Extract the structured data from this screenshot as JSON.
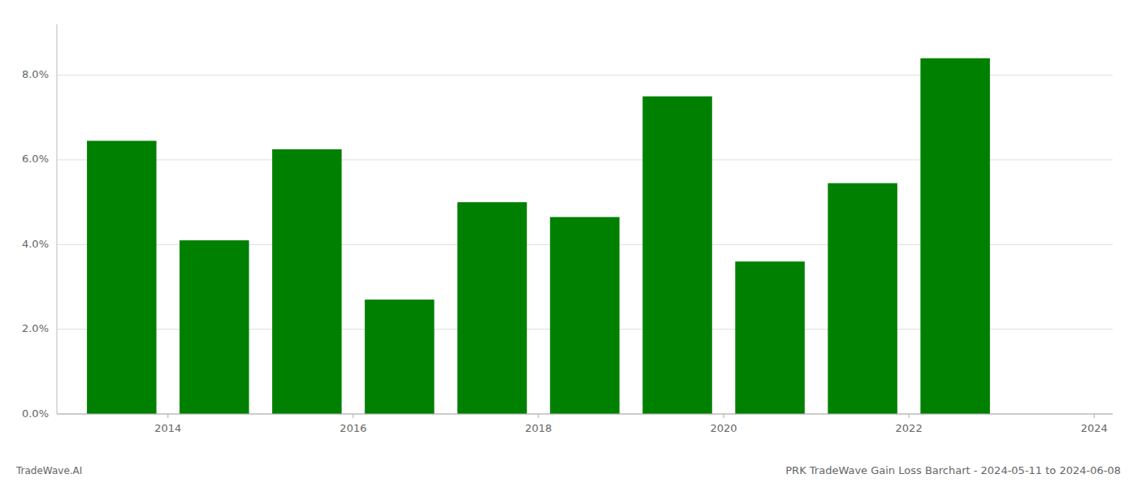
{
  "chart_data": {
    "type": "bar",
    "title": "PRK TradeWave Gain Loss Barchart - 2024-05-11 to 2024-06-08",
    "annotations": [
      "TradeWave.AI"
    ],
    "x": [
      2013,
      2014,
      2015,
      2016,
      2017,
      2018,
      2019,
      2020,
      2021,
      2022
    ],
    "values": [
      0.0645,
      0.041,
      0.0625,
      0.027,
      0.05,
      0.0465,
      0.075,
      0.036,
      0.0545,
      0.084
    ],
    "color": "#008000",
    "xlim": [
      2012.3,
      2023.7
    ],
    "xticks": [
      {
        "value": 2013.5,
        "label": "2014"
      },
      {
        "value": 2015.5,
        "label": "2016"
      },
      {
        "value": 2017.5,
        "label": "2018"
      },
      {
        "value": 2019.5,
        "label": "2020"
      },
      {
        "value": 2021.5,
        "label": "2022"
      },
      {
        "value": 2023.5,
        "label": "2024"
      }
    ],
    "ylim": [
      0,
      0.092
    ],
    "yticks": [
      {
        "value": 0.0,
        "label": "0.0%"
      },
      {
        "value": 0.02,
        "label": "2.0%"
      },
      {
        "value": 0.04,
        "label": "4.0%"
      },
      {
        "value": 0.06,
        "label": "6.0%"
      },
      {
        "value": 0.08,
        "label": "8.0%"
      }
    ],
    "grid": true
  }
}
